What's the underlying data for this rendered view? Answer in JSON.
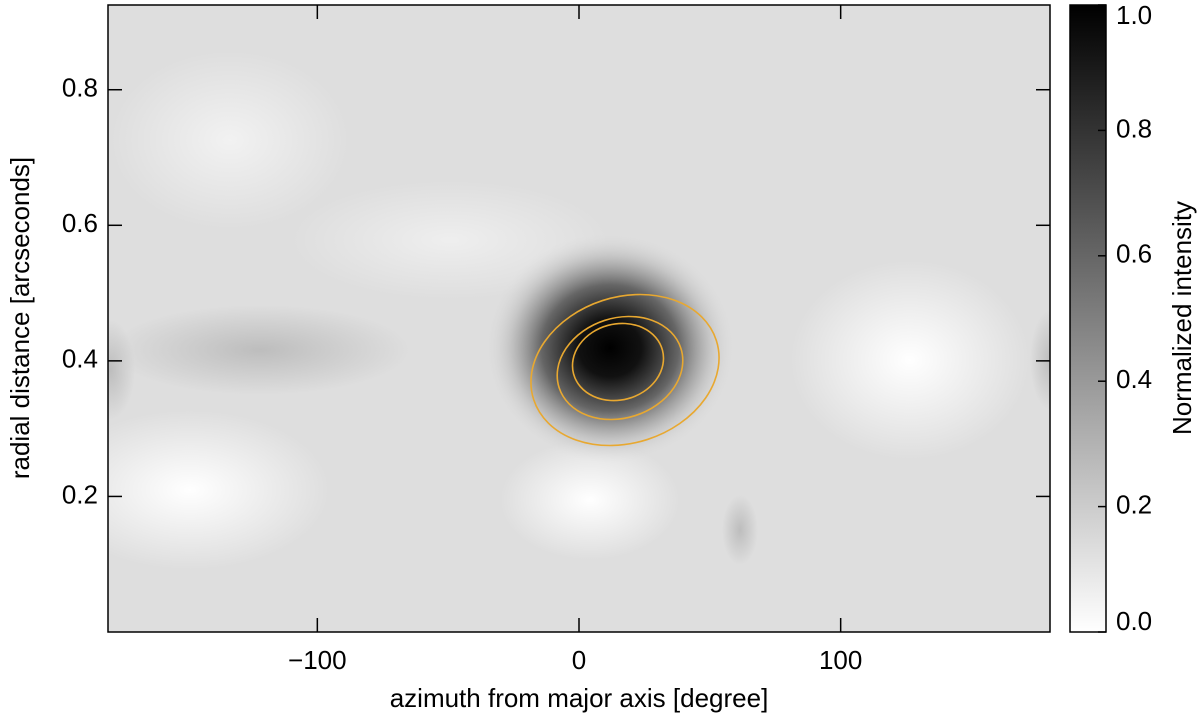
{
  "chart_data": {
    "type": "heatmap",
    "x_label": "azimuth from major axis [degree]",
    "y_label": "radial distance [arcseconds]",
    "colorbar_label": "Normalized intensity",
    "xlim": [
      -180,
      180
    ],
    "xticks": [
      {
        "value": -100,
        "label": "−100"
      },
      0,
      100
    ],
    "ylim": [
      0,
      0.925
    ],
    "yticks": [
      0.2,
      0.4,
      0.6,
      0.8
    ],
    "clim": [
      0,
      1
    ],
    "cticks": [
      {
        "value": 0,
        "label": "0.0"
      },
      0.2,
      0.4,
      0.6,
      0.8,
      {
        "value": 1,
        "label": "1.0"
      }
    ],
    "contour_color": "#e8a830"
  }
}
